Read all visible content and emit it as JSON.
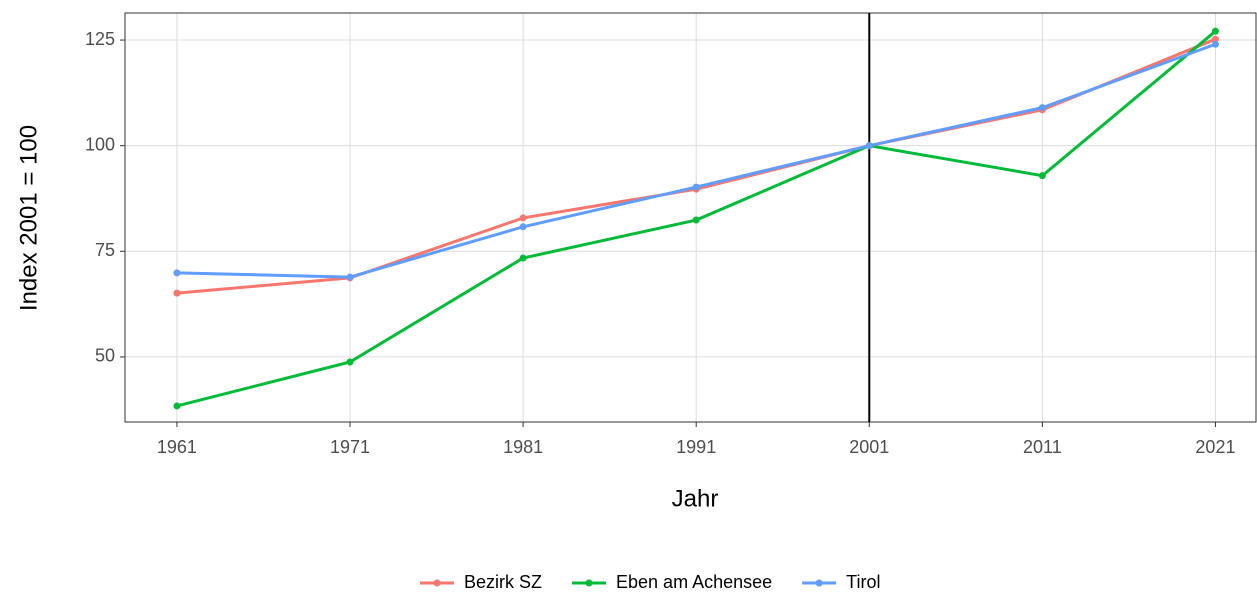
{
  "chart_data": {
    "type": "line",
    "x_label": "Jahr",
    "y_label": "Index 2001 = 100",
    "x": [
      1961,
      1971,
      1981,
      1991,
      2001,
      2011,
      2021
    ],
    "series": [
      {
        "name": "Bezirk SZ",
        "color": "#F8766D",
        "values": [
          65.1,
          68.7,
          82.9,
          89.7,
          100,
          108.5,
          125.2
        ]
      },
      {
        "name": "Eben am Achensee",
        "color": "#00BA38",
        "values": [
          38.4,
          48.8,
          73.4,
          82.4,
          100,
          92.9,
          127.1
        ]
      },
      {
        "name": "Tirol",
        "color": "#619CFF",
        "values": [
          69.9,
          68.9,
          80.8,
          90.2,
          100,
          109,
          124
        ]
      }
    ],
    "xlim": [
      1958,
      2023.4
    ],
    "xticks": [
      1961,
      1971,
      1981,
      1991,
      2001,
      2011,
      2021
    ],
    "ylim": [
      34.6,
      131.4
    ],
    "yticks": [
      50,
      75,
      100,
      125
    ],
    "vline": 2001,
    "grid": true,
    "legend": "bottom"
  }
}
